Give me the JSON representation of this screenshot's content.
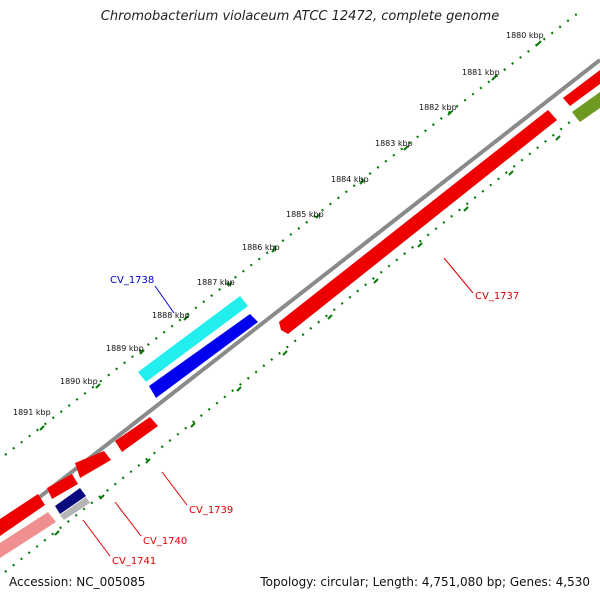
{
  "title": "Chromobacterium violaceum ATCC 12472, complete genome",
  "ticks": [
    {
      "label": "1880 kbp"
    },
    {
      "label": "1881 kbp"
    },
    {
      "label": "1882 kbp"
    },
    {
      "label": "1883 kbp"
    },
    {
      "label": "1884 kbp"
    },
    {
      "label": "1885 kbp"
    },
    {
      "label": "1886 kbp"
    },
    {
      "label": "1887 kbp"
    },
    {
      "label": "1888 kbp"
    },
    {
      "label": "1889 kbp"
    },
    {
      "label": "1890 kbp"
    },
    {
      "label": "1891 kbp"
    }
  ],
  "genes": [
    {
      "name": "CV_1737",
      "color": "#e00000"
    },
    {
      "name": "CV_1738",
      "color": "#0000cc"
    },
    {
      "name": "CV_1739",
      "color": "#e00000"
    },
    {
      "name": "CV_1740",
      "color": "#e00000"
    },
    {
      "name": "CV_1741",
      "color": "#e00000"
    }
  ],
  "footer": {
    "accession": "Accession: NC_005085",
    "topology": "Topology: circular; Length: 4,751,080 bp; Genes: 4,530"
  },
  "colors": {
    "backbone": "#8a8a8a",
    "tick_dots": "#0a7a0a",
    "red": "#ee0000",
    "cyan": "#22eeee",
    "blue": "#0000ee",
    "pink": "#ef8f8f",
    "olive": "#6f9a22",
    "navy": "#0a0a80"
  }
}
